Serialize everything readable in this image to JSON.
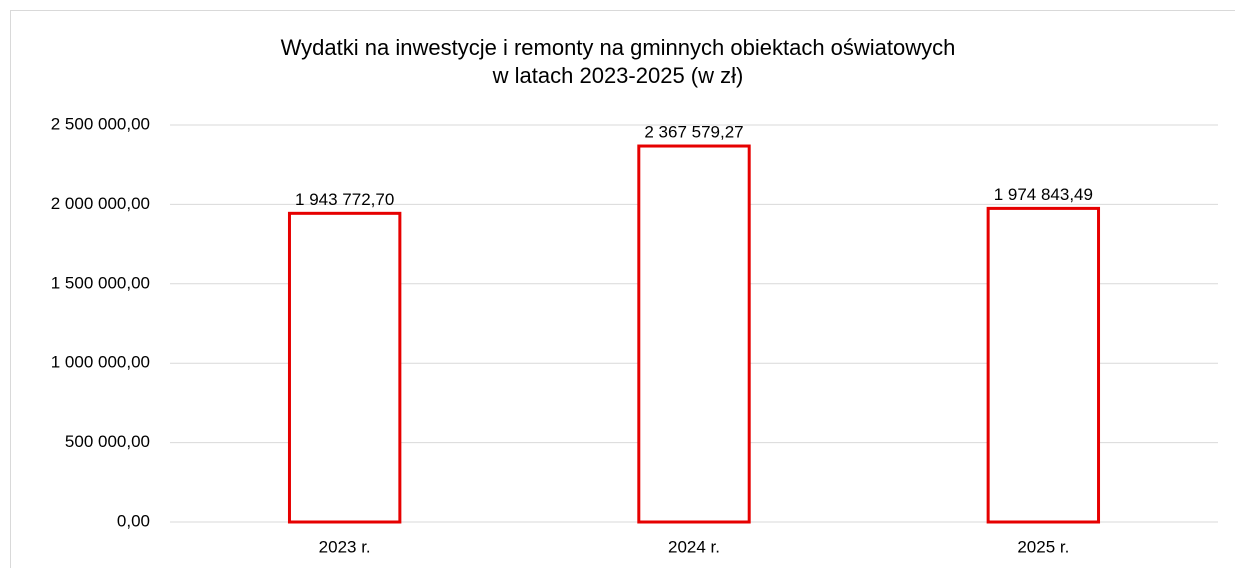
{
  "chart_data": {
    "type": "bar",
    "title": [
      "Wydatki na inwestycje i remonty na gminnych obiektach oświatowych",
      "w latach 2023-2025 (w zł)"
    ],
    "categories": [
      "2023 r.",
      "2024 r.",
      "2025 r."
    ],
    "values": [
      1943772.7,
      2367579.27,
      1974843.49
    ],
    "value_labels": [
      "1 943 772,70",
      "2 367 579,27",
      "1 974 843,49"
    ],
    "color": "#e60000",
    "ylim": [
      0,
      2500000
    ],
    "yticks": [
      {
        "value": 0,
        "label": "0,00"
      },
      {
        "value": 500000,
        "label": "500 000,00"
      },
      {
        "value": 1000000,
        "label": "1 000 000,00"
      },
      {
        "value": 1500000,
        "label": "1 500 000,00"
      },
      {
        "value": 2000000,
        "label": "2 000 000,00"
      },
      {
        "value": 2500000,
        "label": "2 500 000,00"
      }
    ],
    "grid": true
  }
}
